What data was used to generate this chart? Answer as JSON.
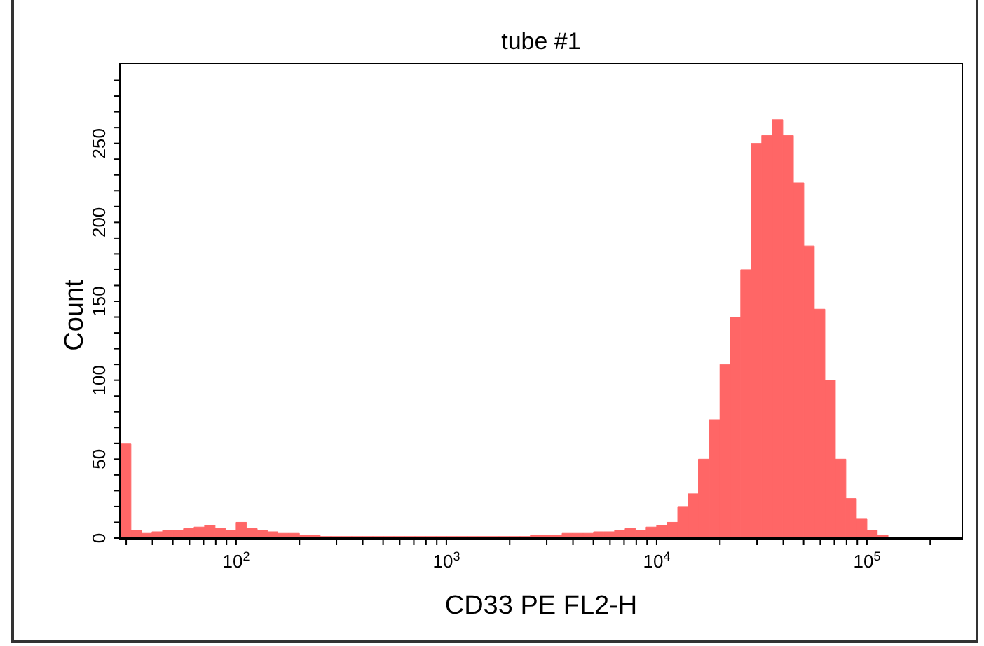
{
  "chart_data": {
    "type": "histogram",
    "title": "tube #1",
    "xlabel": "CD33 PE FL2-H",
    "ylabel": "Count",
    "log": "x",
    "color": "#ff6666",
    "bins": [
      28.2,
      31.6,
      35.5,
      39.8,
      44.7,
      50.1,
      56.2,
      63.1,
      70.8,
      79.4,
      89.1,
      100,
      112,
      126,
      141,
      158,
      178,
      200,
      224,
      251,
      282,
      316,
      355,
      398,
      447,
      501,
      562,
      631,
      708,
      794,
      891,
      1000,
      1120,
      1260,
      1410,
      1580,
      1780,
      2000,
      2240,
      2510,
      2820,
      3160,
      3550,
      3980,
      4470,
      5010,
      5620,
      6310,
      7080,
      7940,
      8910,
      10000,
      11200,
      12600,
      14100,
      15800,
      17800,
      20000,
      22400,
      25100,
      28200,
      31600,
      35500,
      39800,
      44700,
      50100,
      56200,
      63100,
      70800,
      79400,
      89100,
      100000,
      112000,
      126000
    ],
    "values": [
      60,
      5,
      3,
      4,
      5,
      5,
      6,
      7,
      8,
      6,
      5,
      10,
      6,
      5,
      4,
      3,
      3,
      2,
      2,
      1,
      1,
      1,
      1,
      1,
      1,
      1,
      1,
      1,
      1,
      1,
      1,
      1,
      1,
      1,
      1,
      1,
      1,
      1,
      1,
      2,
      2,
      2,
      3,
      3,
      3,
      4,
      4,
      5,
      6,
      5,
      7,
      8,
      10,
      20,
      28,
      50,
      75,
      110,
      140,
      170,
      250,
      255,
      265,
      255,
      225,
      185,
      145,
      100,
      50,
      25,
      12,
      5,
      2
    ],
    "xlim": [
      28.2,
      282000
    ],
    "xticks": [
      {
        "value": 30,
        "label": null
      },
      {
        "value": 40,
        "label": null
      },
      {
        "value": 50,
        "label": null
      },
      {
        "value": 60,
        "label": null
      },
      {
        "value": 70,
        "label": null
      },
      {
        "value": 80,
        "label": null
      },
      {
        "value": 90,
        "label": null
      },
      {
        "value": 100,
        "label": "10$^{2}$"
      },
      {
        "value": 200,
        "label": null
      },
      {
        "value": 300,
        "label": null
      },
      {
        "value": 400,
        "label": null
      },
      {
        "value": 500,
        "label": null
      },
      {
        "value": 600,
        "label": null
      },
      {
        "value": 700,
        "label": null
      },
      {
        "value": 800,
        "label": null
      },
      {
        "value": 900,
        "label": null
      },
      {
        "value": 1000,
        "label": "10$^{3}$"
      },
      {
        "value": 2000,
        "label": null
      },
      {
        "value": 3000,
        "label": null
      },
      {
        "value": 4000,
        "label": null
      },
      {
        "value": 5000,
        "label": null
      },
      {
        "value": 6000,
        "label": null
      },
      {
        "value": 7000,
        "label": null
      },
      {
        "value": 8000,
        "label": null
      },
      {
        "value": 9000,
        "label": null
      },
      {
        "value": 10000,
        "label": "10$^{4}$"
      },
      {
        "value": 20000,
        "label": null
      },
      {
        "value": 30000,
        "label": null
      },
      {
        "value": 40000,
        "label": null
      },
      {
        "value": 50000,
        "label": null
      },
      {
        "value": 60000,
        "label": null
      },
      {
        "value": 70000,
        "label": null
      },
      {
        "value": 80000,
        "label": null
      },
      {
        "value": 90000,
        "label": null
      },
      {
        "value": 100000,
        "label": "10$^{5}$"
      },
      {
        "value": 200000,
        "label": null
      }
    ],
    "ylim": [
      0,
      300
    ],
    "yticks": [
      0,
      {
        "value": 10,
        "label": null
      },
      {
        "value": 20,
        "label": null
      },
      {
        "value": 30,
        "label": null
      },
      {
        "value": 40,
        "label": null
      },
      50,
      {
        "value": 60,
        "label": null
      },
      {
        "value": 70,
        "label": null
      },
      {
        "value": 80,
        "label": null
      },
      {
        "value": 90,
        "label": null
      },
      100,
      {
        "value": 110,
        "label": null
      },
      {
        "value": 120,
        "label": null
      },
      {
        "value": 130,
        "label": null
      },
      {
        "value": 140,
        "label": null
      },
      150,
      {
        "value": 160,
        "label": null
      },
      {
        "value": 170,
        "label": null
      },
      {
        "value": 180,
        "label": null
      },
      {
        "value": 190,
        "label": null
      },
      200,
      {
        "value": 210,
        "label": null
      },
      {
        "value": 220,
        "label": null
      },
      {
        "value": 230,
        "label": null
      },
      {
        "value": 240,
        "label": null
      },
      250,
      {
        "value": 260,
        "label": null
      },
      {
        "value": 270,
        "label": null
      },
      {
        "value": 280,
        "label": null
      },
      {
        "value": 290,
        "label": null
      }
    ]
  }
}
